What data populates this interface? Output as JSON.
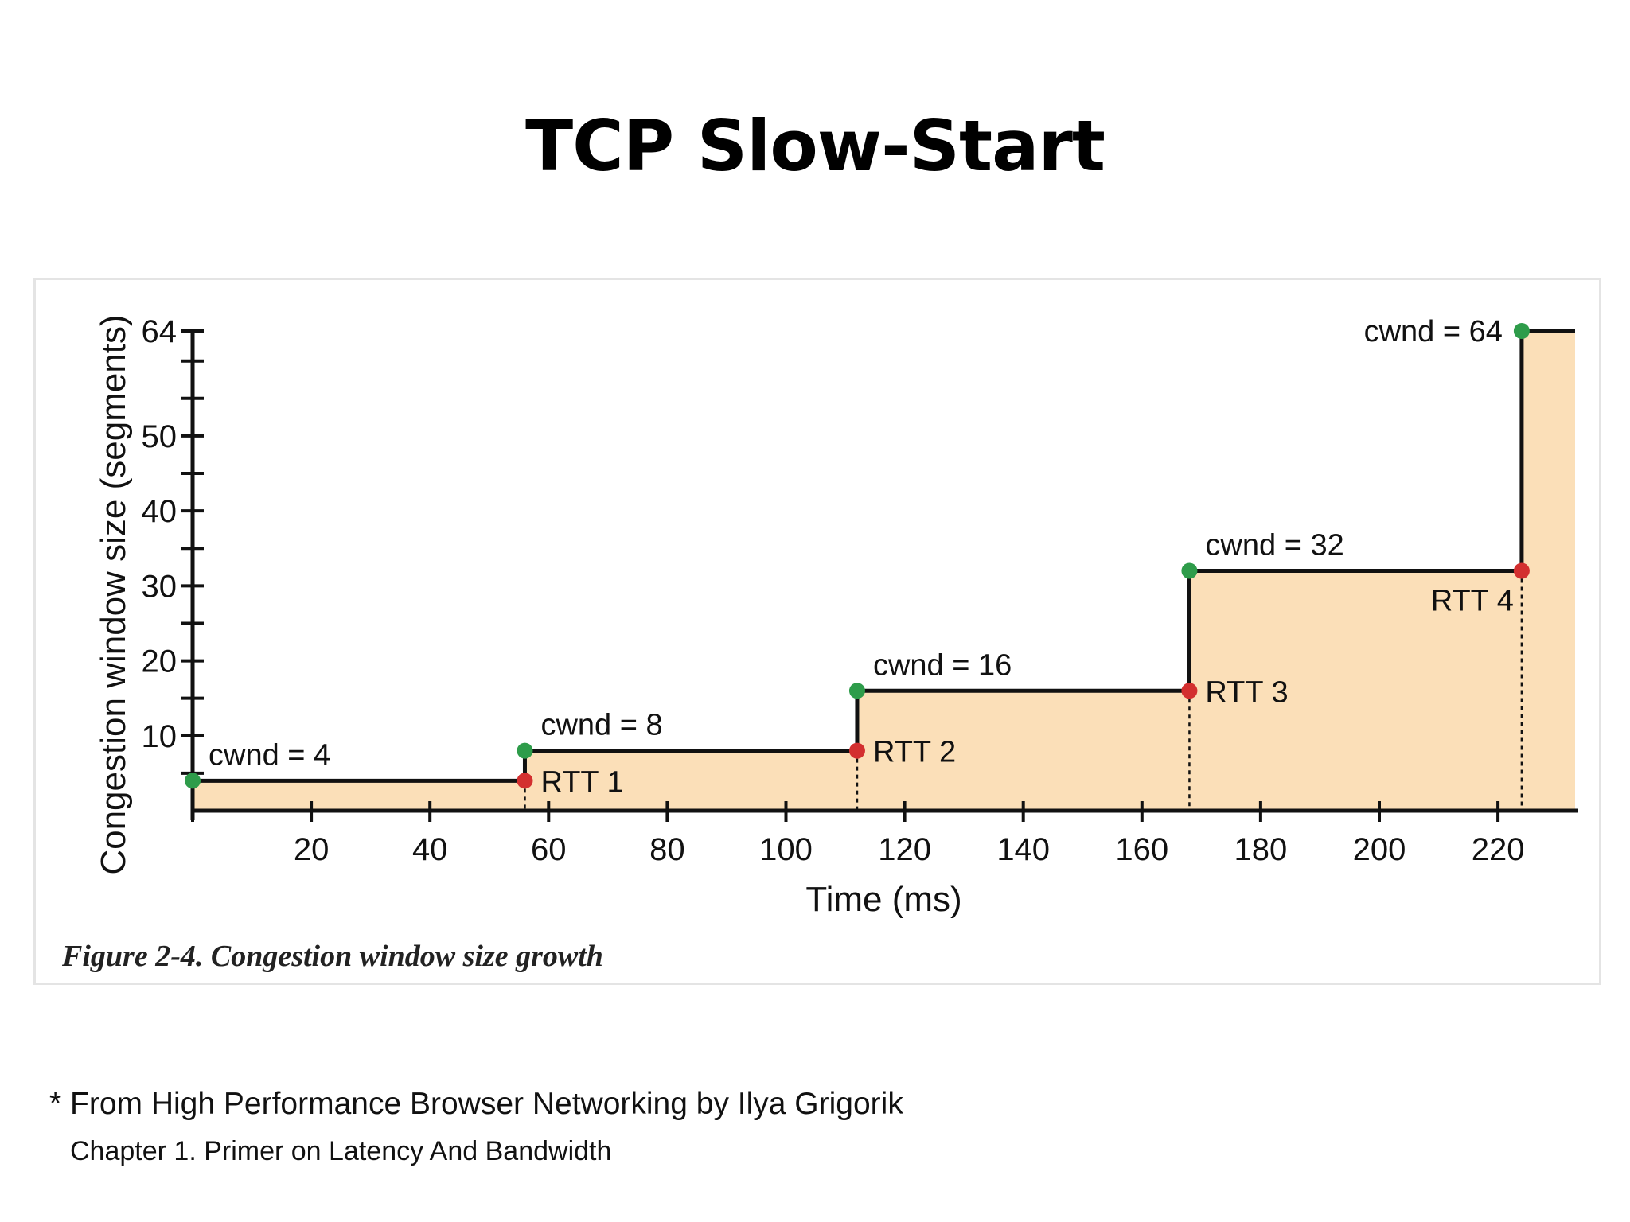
{
  "slide": {
    "title": "TCP Slow-Start",
    "caption": "Figure 2-4. Congestion window size growth",
    "footnote_line1": "* From High Performance Browser Networking by Ilya Grigorik",
    "footnote_line2": "Chapter 1. Primer on Latency And Bandwidth"
  },
  "colors": {
    "fill": "#fbdfb8",
    "line": "#111111",
    "cwnd_point": "#2e9c4a",
    "rtt_point": "#d32f2f"
  },
  "chart_data": {
    "type": "area",
    "title": "",
    "xlabel": "Time (ms)",
    "ylabel": "Congestion window size (segments)",
    "xlim": [
      0,
      233
    ],
    "ylim": [
      0,
      64
    ],
    "x_ticks": [
      20,
      40,
      60,
      80,
      100,
      120,
      140,
      160,
      180,
      200,
      220
    ],
    "y_tick_labels": [
      10,
      20,
      30,
      40,
      50,
      64
    ],
    "y_minor_ticks": [
      5,
      10,
      15,
      20,
      25,
      30,
      35,
      40,
      45,
      50,
      55,
      60,
      64
    ],
    "series": [
      {
        "steps": [
          {
            "x_start": 0,
            "x_end": 56,
            "cwnd": 4
          },
          {
            "x_start": 56,
            "x_end": 112,
            "cwnd": 8
          },
          {
            "x_start": 112,
            "x_end": 168,
            "cwnd": 16
          },
          {
            "x_start": 168,
            "x_end": 224,
            "cwnd": 32
          },
          {
            "x_start": 224,
            "x_end": 233,
            "cwnd": 64
          }
        ]
      }
    ],
    "cwnd_labels": [
      {
        "x": 0,
        "y": 4,
        "text": "cwnd = 4"
      },
      {
        "x": 56,
        "y": 8,
        "text": "cwnd = 8"
      },
      {
        "x": 112,
        "y": 16,
        "text": "cwnd = 16"
      },
      {
        "x": 168,
        "y": 32,
        "text": "cwnd = 32"
      },
      {
        "x": 224,
        "y": 64,
        "text": "cwnd = 64"
      }
    ],
    "rtt_markers": [
      {
        "x": 56,
        "y": 4,
        "text": "RTT 1"
      },
      {
        "x": 112,
        "y": 8,
        "text": "RTT 2"
      },
      {
        "x": 168,
        "y": 16,
        "text": "RTT 3"
      },
      {
        "x": 224,
        "y": 32,
        "text": "RTT 4"
      }
    ]
  }
}
